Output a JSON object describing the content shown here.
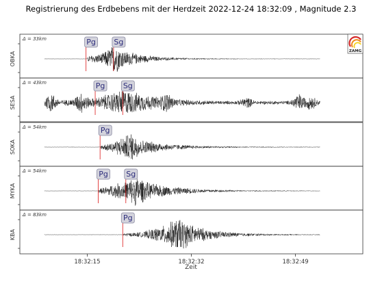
{
  "title": "Registrierung des Erdbebens mit der Herdzeit 2022-12-24 18:32:09 , Magnitude 2.3",
  "logo_text": "ZAMG",
  "chart_data": {
    "type": "line",
    "title": "Registrierung des Erdbebens mit der Herdzeit 2022-12-24 18:32:09 , Magnitude 2.3",
    "xlabel": "Zeit",
    "ylabel": "",
    "x_time_range": [
      "18:32:04",
      "18:33:00"
    ],
    "x_ticks": [
      {
        "t": 15,
        "label": "18:32:15"
      },
      {
        "t": 32,
        "label": "18:32:32"
      },
      {
        "t": 49,
        "label": "18:32:49"
      }
    ],
    "series": [
      {
        "name": "OBKA",
        "distance": "Δ = 33km",
        "picks": [
          {
            "phase": "Pg",
            "t": 14.8
          },
          {
            "phase": "Sg",
            "t": 19.3
          }
        ],
        "envelope": [
          {
            "t": 15.0,
            "a": 0.05
          },
          {
            "t": 15.2,
            "a": 0.18
          },
          {
            "t": 17.5,
            "a": 0.3
          },
          {
            "t": 19.5,
            "a": 0.85
          },
          {
            "t": 21.0,
            "a": 0.45
          },
          {
            "t": 23.5,
            "a": 0.25
          },
          {
            "t": 27.0,
            "a": 0.1
          },
          {
            "t": 33.0,
            "a": 0.04
          },
          {
            "t": 40.0,
            "a": 0.015
          },
          {
            "t": 52.0,
            "a": 0.01
          }
        ]
      },
      {
        "name": "SESA",
        "distance": "Δ = 43km",
        "picks": [
          {
            "phase": "Pg",
            "t": 16.3
          },
          {
            "phase": "Sg",
            "t": 20.8
          }
        ],
        "envelope": [
          {
            "t": 8.0,
            "a": 0.1
          },
          {
            "t": 16.3,
            "a": 0.25
          },
          {
            "t": 20.8,
            "a": 0.75
          },
          {
            "t": 23.0,
            "a": 0.55
          },
          {
            "t": 26.0,
            "a": 0.35
          },
          {
            "t": 30.0,
            "a": 0.18
          },
          {
            "t": 36.0,
            "a": 0.1
          },
          {
            "t": 52.0,
            "a": 0.1
          }
        ],
        "noise_bursts": [
          {
            "t": 9.0,
            "a": 0.45
          },
          {
            "t": 14.0,
            "a": 0.4
          },
          {
            "t": 28.0,
            "a": 0.3
          },
          {
            "t": 41.0,
            "a": 0.22
          },
          {
            "t": 49.5,
            "a": 0.4
          },
          {
            "t": 51.5,
            "a": 0.3
          }
        ]
      },
      {
        "name": "SOKA",
        "distance": "Δ = 54km",
        "picks": [
          {
            "phase": "Pg",
            "t": 17.1
          }
        ],
        "envelope": [
          {
            "t": 17.2,
            "a": 0.1
          },
          {
            "t": 19.5,
            "a": 0.35
          },
          {
            "t": 22.2,
            "a": 0.8
          },
          {
            "t": 24.0,
            "a": 0.4
          },
          {
            "t": 28.0,
            "a": 0.18
          },
          {
            "t": 33.0,
            "a": 0.08
          },
          {
            "t": 40.0,
            "a": 0.03
          },
          {
            "t": 52.0,
            "a": 0.015
          }
        ]
      },
      {
        "name": "MYKA",
        "distance": "Δ = 54km",
        "picks": [
          {
            "phase": "Pg",
            "t": 16.8
          },
          {
            "phase": "Sg",
            "t": 21.3
          }
        ],
        "envelope": [
          {
            "t": 16.9,
            "a": 0.1
          },
          {
            "t": 18.5,
            "a": 0.3
          },
          {
            "t": 21.5,
            "a": 0.55
          },
          {
            "t": 23.0,
            "a": 0.85
          },
          {
            "t": 25.0,
            "a": 0.45
          },
          {
            "t": 29.0,
            "a": 0.22
          },
          {
            "t": 34.0,
            "a": 0.1
          },
          {
            "t": 40.0,
            "a": 0.04
          },
          {
            "t": 52.0,
            "a": 0.015
          }
        ]
      },
      {
        "name": "KBA",
        "distance": "Δ = 83km",
        "picks": [
          {
            "phase": "Pg",
            "t": 20.8
          }
        ],
        "envelope": [
          {
            "t": 20.9,
            "a": 0.08
          },
          {
            "t": 24.0,
            "a": 0.15
          },
          {
            "t": 27.5,
            "a": 0.5
          },
          {
            "t": 30.0,
            "a": 0.95
          },
          {
            "t": 32.0,
            "a": 0.55
          },
          {
            "t": 35.0,
            "a": 0.25
          },
          {
            "t": 40.0,
            "a": 0.1
          },
          {
            "t": 46.0,
            "a": 0.04
          },
          {
            "t": 52.0,
            "a": 0.02
          }
        ]
      }
    ],
    "grid": false,
    "legend": "none"
  },
  "colors": {
    "pick": "#e03030",
    "phase_box": "#d3d3dc",
    "phase_text": "#2b2b7a",
    "trace": "#111111",
    "logo_arc_red": "#d42a2a",
    "logo_arc_orange": "#f08c1e",
    "logo_arc_yellow": "#f4d21e"
  }
}
